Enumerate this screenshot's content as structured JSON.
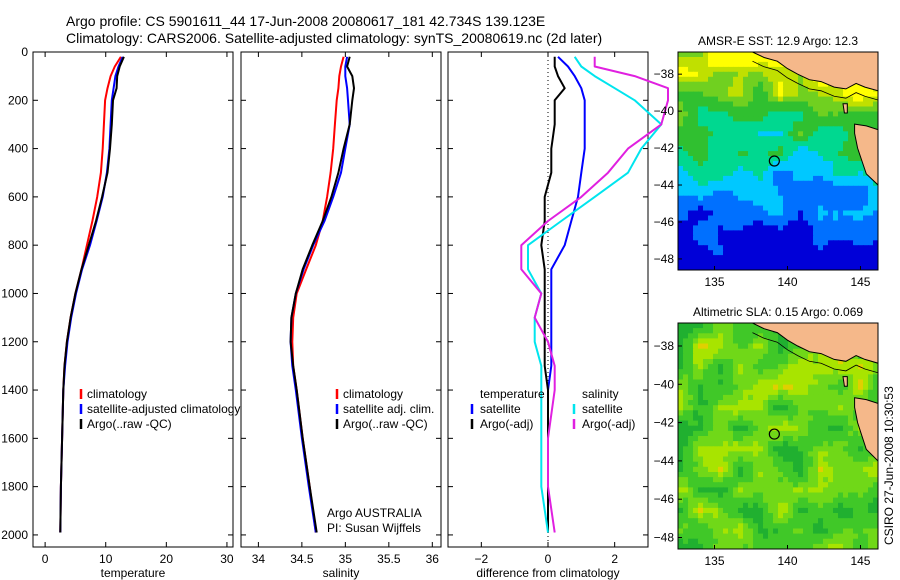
{
  "figure": {
    "title_line1": "Argo profile: CS 5901611_44 17-Jun-2008 20080617_181 42.734S 139.123E",
    "title_line2": "Climatology: CARS2006. Satellite-adjusted climatology: synTS_20080619.nc (2d later)",
    "credit": "CSIRO 27-Jun-2008 10:30:53",
    "colors": {
      "red": "#ff0000",
      "blue": "#0000ff",
      "black": "#000000",
      "cyan": "#00e5ee",
      "magenta": "#e020e0"
    }
  },
  "chart_data": [
    {
      "type": "line",
      "name": "temperature-panel",
      "xlabel": "temperature",
      "ylabel": "",
      "xlim": [
        -2,
        31
      ],
      "ylim": [
        2050,
        0
      ],
      "xticks": [
        0,
        10,
        20,
        30
      ],
      "yticks": [
        0,
        200,
        400,
        600,
        800,
        1000,
        1200,
        1400,
        1600,
        1800,
        2000
      ],
      "legend": {
        "placement": "lower-right",
        "entries": [
          "climatology",
          "satellite-adjusted climatology",
          "Argo(..raw -QC)"
        ]
      },
      "series": [
        {
          "name": "climatology",
          "color": "red",
          "points": [
            [
              12.5,
              20
            ],
            [
              11.5,
              60
            ],
            [
              10.8,
              100
            ],
            [
              10.3,
              150
            ],
            [
              9.9,
              200
            ],
            [
              9.7,
              300
            ],
            [
              9.5,
              400
            ],
            [
              9.2,
              500
            ],
            [
              8.6,
              600
            ],
            [
              7.8,
              700
            ],
            [
              6.9,
              800
            ],
            [
              6.0,
              900
            ],
            [
              5.0,
              1000
            ],
            [
              4.2,
              1100
            ],
            [
              3.6,
              1200
            ],
            [
              3.2,
              1300
            ],
            [
              3.0,
              1400
            ],
            [
              2.8,
              1600
            ],
            [
              2.6,
              1800
            ],
            [
              2.5,
              1990
            ]
          ]
        },
        {
          "name": "satellite-adjusted climatology",
          "color": "blue",
          "points": [
            [
              12.8,
              20
            ],
            [
              12.1,
              60
            ],
            [
              11.6,
              100
            ],
            [
              11.3,
              150
            ],
            [
              11.0,
              200
            ],
            [
              10.8,
              300
            ],
            [
              10.6,
              400
            ],
            [
              10.2,
              500
            ],
            [
              9.5,
              600
            ],
            [
              8.5,
              700
            ],
            [
              7.4,
              800
            ],
            [
              6.1,
              900
            ],
            [
              5.1,
              1000
            ],
            [
              4.3,
              1100
            ],
            [
              3.7,
              1200
            ],
            [
              3.3,
              1300
            ],
            [
              3.0,
              1400
            ],
            [
              2.8,
              1600
            ],
            [
              2.6,
              1800
            ],
            [
              2.5,
              1990
            ]
          ]
        },
        {
          "name": "Argo(..raw -QC)",
          "color": "black",
          "points": [
            [
              13.0,
              20
            ],
            [
              12.3,
              60
            ],
            [
              11.9,
              100
            ],
            [
              11.8,
              150
            ],
            [
              11.2,
              200
            ],
            [
              11.0,
              300
            ],
            [
              10.7,
              400
            ],
            [
              10.3,
              500
            ],
            [
              9.4,
              600
            ],
            [
              8.4,
              700
            ],
            [
              7.2,
              800
            ],
            [
              6.0,
              900
            ],
            [
              5.0,
              1000
            ],
            [
              4.2,
              1100
            ],
            [
              3.6,
              1200
            ],
            [
              3.2,
              1300
            ],
            [
              3.0,
              1400
            ],
            [
              2.8,
              1600
            ],
            [
              2.6,
              1800
            ],
            [
              2.5,
              1990
            ]
          ]
        }
      ]
    },
    {
      "type": "line",
      "name": "salinity-panel",
      "xlabel": "salinity",
      "ylabel": "",
      "xlim": [
        33.8,
        36.1
      ],
      "ylim": [
        2050,
        0
      ],
      "xticks": [
        34,
        34.5,
        35,
        35.5,
        36
      ],
      "xticklabels": [
        "34",
        "34.5",
        "35",
        "35.5",
        "36"
      ],
      "legend": {
        "placement": "lower-right",
        "entries": [
          "climatology",
          "satellite adj. clim.",
          "Argo(..raw -QC)"
        ]
      },
      "annotation": [
        "Argo AUSTRALIA",
        "PI: Susan Wijffels"
      ],
      "series": [
        {
          "name": "climatology",
          "color": "red",
          "points": [
            [
              34.98,
              20
            ],
            [
              34.95,
              60
            ],
            [
              34.93,
              100
            ],
            [
              34.92,
              150
            ],
            [
              34.9,
              200
            ],
            [
              34.88,
              300
            ],
            [
              34.86,
              400
            ],
            [
              34.83,
              500
            ],
            [
              34.79,
              600
            ],
            [
              34.74,
              700
            ],
            [
              34.66,
              800
            ],
            [
              34.55,
              900
            ],
            [
              34.44,
              1000
            ],
            [
              34.4,
              1100
            ],
            [
              34.39,
              1200
            ],
            [
              34.4,
              1300
            ],
            [
              34.44,
              1400
            ],
            [
              34.51,
              1600
            ],
            [
              34.59,
              1800
            ],
            [
              34.66,
              1990
            ]
          ]
        },
        {
          "name": "satellite adj. clim.",
          "color": "blue",
          "points": [
            [
              35.02,
              20
            ],
            [
              35.0,
              60
            ],
            [
              35.0,
              100
            ],
            [
              35.02,
              150
            ],
            [
              35.03,
              200
            ],
            [
              35.05,
              300
            ],
            [
              35.0,
              400
            ],
            [
              34.95,
              500
            ],
            [
              34.86,
              600
            ],
            [
              34.76,
              700
            ],
            [
              34.63,
              800
            ],
            [
              34.52,
              900
            ],
            [
              34.43,
              1000
            ],
            [
              34.38,
              1100
            ],
            [
              34.37,
              1200
            ],
            [
              34.39,
              1300
            ],
            [
              34.43,
              1400
            ],
            [
              34.5,
              1600
            ],
            [
              34.58,
              1800
            ],
            [
              34.66,
              1990
            ]
          ]
        },
        {
          "name": "Argo(..raw -QC)",
          "color": "black",
          "points": [
            [
              35.05,
              20
            ],
            [
              35.02,
              60
            ],
            [
              35.08,
              100
            ],
            [
              35.1,
              150
            ],
            [
              35.08,
              200
            ],
            [
              35.05,
              300
            ],
            [
              34.98,
              400
            ],
            [
              34.92,
              500
            ],
            [
              34.84,
              600
            ],
            [
              34.74,
              700
            ],
            [
              34.62,
              800
            ],
            [
              34.51,
              900
            ],
            [
              34.43,
              1000
            ],
            [
              34.38,
              1100
            ],
            [
              34.37,
              1200
            ],
            [
              34.4,
              1300
            ],
            [
              34.44,
              1400
            ],
            [
              34.51,
              1600
            ],
            [
              34.59,
              1800
            ],
            [
              34.67,
              1990
            ]
          ]
        }
      ]
    },
    {
      "type": "line",
      "name": "difference-panel",
      "xlabel": "difference from climatology",
      "ylabel": "",
      "xlim": [
        -3,
        3
      ],
      "ylim": [
        2050,
        0
      ],
      "xticks": [
        -2,
        0,
        2
      ],
      "xticklabels": [
        "−2",
        "0",
        "2"
      ],
      "zero_line": 0,
      "legend": {
        "placement": "lower-center",
        "groups": [
          {
            "heading": "temperature",
            "entries": [
              "satellite",
              "Argo(-adj)"
            ]
          },
          {
            "heading": "salinity",
            "entries": [
              "satellite",
              "Argo(-adj)"
            ]
          }
        ]
      },
      "series": [
        {
          "name": "temperature satellite",
          "color": "blue",
          "points": [
            [
              0.3,
              20
            ],
            [
              0.6,
              60
            ],
            [
              0.8,
              100
            ],
            [
              1.0,
              150
            ],
            [
              1.1,
              200
            ],
            [
              1.1,
              300
            ],
            [
              1.1,
              400
            ],
            [
              1.0,
              500
            ],
            [
              0.9,
              600
            ],
            [
              0.7,
              700
            ],
            [
              0.5,
              800
            ],
            [
              0.1,
              900
            ],
            [
              0.1,
              1000
            ],
            [
              0.1,
              1100
            ],
            [
              0.1,
              1200
            ],
            [
              0.1,
              1300
            ],
            [
              0.0,
              1400
            ],
            [
              0.0,
              1600
            ],
            [
              0.0,
              1800
            ],
            [
              0.0,
              1990
            ]
          ]
        },
        {
          "name": "temperature Argo(-adj)",
          "color": "black",
          "points": [
            [
              0.2,
              20
            ],
            [
              0.2,
              60
            ],
            [
              0.3,
              100
            ],
            [
              0.5,
              150
            ],
            [
              0.2,
              200
            ],
            [
              0.2,
              300
            ],
            [
              0.1,
              400
            ],
            [
              0.1,
              500
            ],
            [
              -0.1,
              600
            ],
            [
              -0.1,
              700
            ],
            [
              -0.2,
              800
            ],
            [
              -0.1,
              900
            ],
            [
              -0.1,
              1000
            ],
            [
              -0.1,
              1100
            ],
            [
              -0.1,
              1200
            ],
            [
              -0.1,
              1300
            ],
            [
              0.0,
              1400
            ],
            [
              0.0,
              1600
            ],
            [
              0.0,
              1800
            ],
            [
              0.0,
              1990
            ]
          ]
        },
        {
          "name": "salinity satellite",
          "color": "cyan",
          "points": [
            [
              0.8,
              20
            ],
            [
              1.0,
              60
            ],
            [
              1.4,
              100
            ],
            [
              2.0,
              150
            ],
            [
              2.6,
              200
            ],
            [
              3.4,
              300
            ],
            [
              2.8,
              400
            ],
            [
              2.4,
              500
            ],
            [
              1.4,
              600
            ],
            [
              0.4,
              700
            ],
            [
              -0.6,
              800
            ],
            [
              -0.6,
              900
            ],
            [
              -0.2,
              1000
            ],
            [
              -0.4,
              1100
            ],
            [
              -0.4,
              1200
            ],
            [
              -0.2,
              1300
            ],
            [
              -0.2,
              1400
            ],
            [
              -0.2,
              1600
            ],
            [
              -0.2,
              1800
            ],
            [
              0.0,
              1990
            ]
          ]
        },
        {
          "name": "salinity Argo(-adj)",
          "color": "magenta",
          "points": [
            [
              1.4,
              20
            ],
            [
              1.4,
              60
            ],
            [
              2.6,
              100
            ],
            [
              3.6,
              150
            ],
            [
              3.6,
              200
            ],
            [
              3.4,
              300
            ],
            [
              2.4,
              400
            ],
            [
              1.8,
              500
            ],
            [
              1.0,
              600
            ],
            [
              0.0,
              700
            ],
            [
              -0.8,
              800
            ],
            [
              -0.8,
              900
            ],
            [
              -0.2,
              1000
            ],
            [
              -0.4,
              1100
            ],
            [
              0.0,
              1200
            ],
            [
              0.2,
              1300
            ],
            [
              0.2,
              1400
            ],
            [
              0.0,
              1600
            ],
            [
              0.0,
              1800
            ],
            [
              0.2,
              1990
            ]
          ]
        }
      ]
    },
    {
      "type": "heatmap",
      "name": "sst-map",
      "title": "AMSR-E SST: 12.9 Argo: 12.3",
      "xlim": [
        132.5,
        146.2
      ],
      "ylim": [
        -48.6,
        -36.8
      ],
      "xticks": [
        135,
        140,
        145
      ],
      "yticks": [
        -38,
        -40,
        -42,
        -44,
        -46,
        -48
      ],
      "marker": {
        "lon": 139.1,
        "lat": -42.7
      },
      "seed": 7
    },
    {
      "type": "heatmap",
      "name": "sla-map",
      "title": "Altimetric SLA: 0.15 Argo: 0.069",
      "xlim": [
        132.5,
        146.2
      ],
      "ylim": [
        -48.6,
        -36.8
      ],
      "xticks": [
        135,
        140,
        145
      ],
      "yticks": [
        -38,
        -40,
        -42,
        -44,
        -46,
        -48
      ],
      "marker": {
        "lon": 139.1,
        "lat": -42.6
      },
      "seed": 23
    }
  ]
}
